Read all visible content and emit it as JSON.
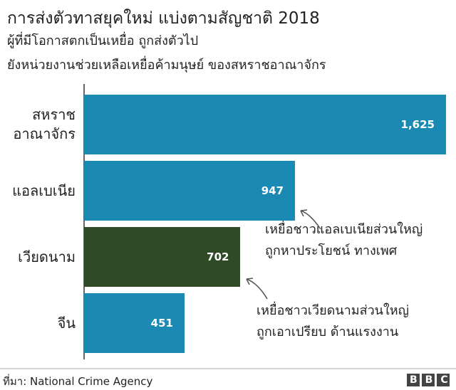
{
  "chart_data": {
    "type": "bar",
    "orientation": "horizontal",
    "title": "การส่งตัวทาสยุคใหม่ แบ่งตามสัญชาติ 2018",
    "subtitle": [
      "ผู้ที่มีโอกาสตกเป็นเหยื่อ ถูกส่งตัวไป",
      "ยังหน่วยงานช่วยเหลือเหยื่อค้ามนุษย์ ของสหราชอาณาจักร"
    ],
    "categories": [
      "สหราช\nอาณาจักร",
      "แอลเบเนีย",
      "เวียดนาม",
      "จีน"
    ],
    "values": [
      1625,
      947,
      702,
      451
    ],
    "value_labels": [
      "1,625",
      "947",
      "702",
      "451"
    ],
    "colors": [
      "#1a8ab4",
      "#1a8ab4",
      "#2e4a27",
      "#1a8ab4"
    ],
    "annotations": [
      "เหยื่อชาวแอลเบเนียส่วนใหญ่\nถูกหาประโยชน์ ทางเพศ",
      "เหยื่อชาวเวียดนามส่วนใหญ่\nถูกเอาเปรียบ ด้านแรงงาน"
    ],
    "source": "ที่มา: National Crime Agency",
    "logo": "BBC"
  }
}
